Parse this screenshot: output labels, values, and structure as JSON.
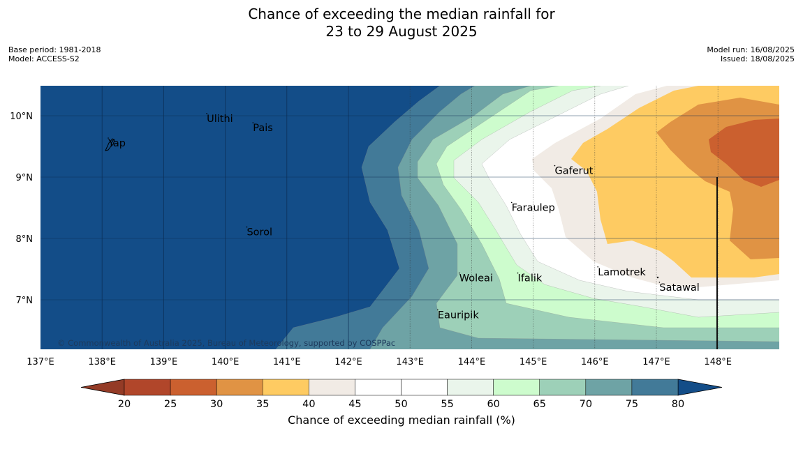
{
  "title_line1": "Chance of exceeding the median rainfall for",
  "title_line2": "23 to 29 August 2025",
  "base_period": "Base period: 1981-2018",
  "model": "Model: ACCESS-S2",
  "model_run": "Model run: 16/08/2025",
  "issued": "Issued: 18/08/2025",
  "copyright": "© Commonwealth of Australia 2025, Bureau of Meteorology, supported by COSPPac",
  "lon_ticks": [
    "137°E",
    "138°E",
    "139°E",
    "140°E",
    "141°E",
    "142°E",
    "143°E",
    "144°E",
    "145°E",
    "146°E",
    "147°E",
    "148°E"
  ],
  "lat_ticks": [
    "10°N",
    "9°N",
    "8°N",
    "7°N"
  ],
  "places": [
    {
      "name": "Ulithi",
      "lon": 139.7,
      "lat": 9.9
    },
    {
      "name": "Pais",
      "lon": 140.45,
      "lat": 9.75
    },
    {
      "name": "Yap",
      "lon": 138.1,
      "lat": 9.5
    },
    {
      "name": "Gaferut",
      "lon": 145.35,
      "lat": 9.05
    },
    {
      "name": "Faraulep",
      "lon": 144.65,
      "lat": 8.45
    },
    {
      "name": "Sorol",
      "lon": 140.35,
      "lat": 8.05
    },
    {
      "name": "Lamotrek",
      "lon": 146.05,
      "lat": 7.4
    },
    {
      "name": "Woleai",
      "lon": 143.8,
      "lat": 7.3
    },
    {
      "name": "Ifalik",
      "lon": 144.75,
      "lat": 7.3
    },
    {
      "name": "Satawal",
      "lon": 147.05,
      "lat": 7.15
    },
    {
      "name": "Eauripik",
      "lon": 143.45,
      "lat": 6.7
    }
  ],
  "colors": {
    "bin_20_25": "#b1462a",
    "bin_25_30": "#cb602f",
    "bin_30_35": "#e09344",
    "bin_35_40": "#fecb62",
    "bin_40_45": "#f1ebe5",
    "bin_45_55": "#ffffff",
    "bin_55_60": "#eaf5eb",
    "bin_60_65": "#cdfccd",
    "bin_65_70": "#9dd0b8",
    "bin_70_75": "#6ea3a5",
    "bin_75_80": "#427a98",
    "bin_80_plus": "#134d88",
    "under_20": "#943b26"
  },
  "colorbar": {
    "title": "Chance of exceeding median rainfall (%)",
    "ticks": [
      "20",
      "25",
      "30",
      "35",
      "40",
      "45",
      "50",
      "55",
      "60",
      "65",
      "70",
      "75",
      "80"
    ]
  }
}
